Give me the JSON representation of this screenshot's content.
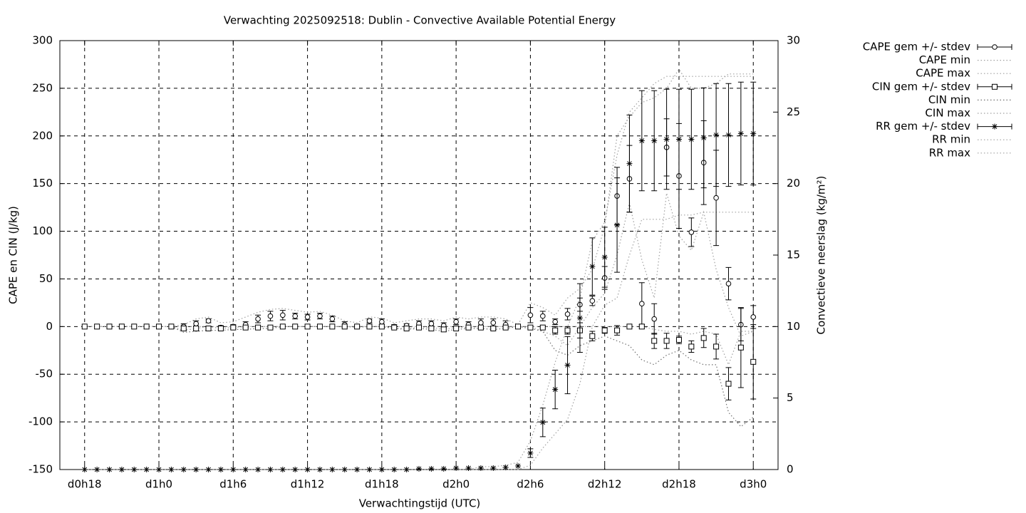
{
  "chart_data": {
    "type": "errorbar",
    "title": "Verwachting 2025092518: Dublin - Convective Available Potential Energy",
    "xlabel": "Verwachtingstijd (UTC)",
    "ylabel": "CAPE en CIN (J/kg)",
    "y2label": "Convectieve neerslag (kg/m²)",
    "x": [
      18,
      19,
      20,
      21,
      22,
      23,
      24,
      25,
      26,
      27,
      28,
      29,
      30,
      31,
      32,
      33,
      34,
      35,
      36,
      37,
      38,
      39,
      40,
      41,
      42,
      43,
      44,
      45,
      46,
      47,
      48,
      49,
      50,
      51,
      52,
      53,
      54,
      55,
      56,
      57,
      58,
      59,
      60,
      61,
      62,
      63,
      64,
      65,
      66,
      67,
      68,
      69,
      70,
      71,
      72
    ],
    "xlim": [
      16,
      74
    ],
    "xticks": [
      {
        "value": 18,
        "label": "d0h18"
      },
      {
        "value": 24,
        "label": "d1h0"
      },
      {
        "value": 30,
        "label": "d1h6"
      },
      {
        "value": 36,
        "label": "d1h12"
      },
      {
        "value": 42,
        "label": "d1h18"
      },
      {
        "value": 48,
        "label": "d2h0"
      },
      {
        "value": 54,
        "label": "d2h6"
      },
      {
        "value": 60,
        "label": "d2h12"
      },
      {
        "value": 66,
        "label": "d2h18"
      },
      {
        "value": 72,
        "label": "d3h0"
      }
    ],
    "ylim": [
      -150,
      300
    ],
    "yticks": [
      -150,
      -100,
      -50,
      0,
      50,
      100,
      150,
      200,
      250,
      300
    ],
    "y2lim": [
      0,
      30
    ],
    "y2ticks": [
      0,
      5,
      10,
      15,
      20,
      25,
      30
    ],
    "grid": true,
    "legend": "outside-right",
    "series": [
      {
        "name": "CAPE gem +/- stdev",
        "color": "#000000",
        "style": "errorbar",
        "marker": "circle",
        "values": [
          0,
          0,
          0,
          0,
          0,
          0,
          0,
          0,
          0,
          3,
          6,
          -1,
          0,
          2,
          8,
          11,
          12,
          11,
          10,
          11,
          8,
          2,
          0,
          6,
          5,
          0,
          1,
          3,
          3,
          1,
          5,
          2,
          4,
          4,
          2,
          0,
          12,
          11,
          5,
          13,
          23,
          27,
          51,
          137,
          155,
          24,
          8,
          188,
          158,
          99,
          172,
          135,
          45,
          2,
          10
        ],
        "errors": [
          0,
          0,
          0,
          0,
          0,
          0,
          0,
          0,
          3,
          3,
          2,
          2,
          2,
          3,
          4,
          5,
          5,
          3,
          3,
          3,
          3,
          3,
          1,
          2,
          3,
          2,
          2,
          3,
          3,
          3,
          3,
          3,
          4,
          4,
          4,
          1,
          8,
          5,
          3,
          6,
          7,
          5,
          12,
          30,
          35,
          22,
          16,
          30,
          55,
          15,
          44,
          50,
          17,
          17,
          12
        ]
      },
      {
        "name": "CAPE min",
        "color": "#a0a0a0",
        "style": "dotted",
        "values": [
          0,
          0,
          0,
          0,
          0,
          0,
          0,
          0,
          -4,
          -2,
          0,
          -2,
          -1,
          0,
          0,
          0,
          0,
          0,
          0,
          0,
          0,
          0,
          -1,
          0,
          0,
          -2,
          -2,
          -1,
          -1,
          -3,
          -1,
          -1,
          0,
          0,
          0,
          0,
          0,
          -5,
          -10,
          -20,
          0,
          20,
          35,
          75,
          130,
          70,
          30,
          140,
          95,
          80,
          120,
          60,
          20,
          -10,
          -5
        ]
      },
      {
        "name": "CAPE max",
        "color": "#a0a0a0",
        "style": "dotted",
        "values": [
          0,
          0,
          0,
          0,
          0,
          0,
          0,
          0,
          2,
          8,
          10,
          4,
          5,
          10,
          15,
          18,
          19,
          17,
          15,
          16,
          12,
          6,
          4,
          10,
          9,
          4,
          6,
          8,
          8,
          6,
          10,
          8,
          10,
          10,
          8,
          2,
          25,
          20,
          12,
          30,
          40,
          60,
          105,
          200,
          220,
          235,
          240,
          250,
          270,
          250,
          250,
          255,
          265,
          265,
          265
        ]
      },
      {
        "name": "CIN gem +/- stdev",
        "color": "#000000",
        "style": "errorbar",
        "marker": "square",
        "values": [
          0,
          0,
          0,
          0,
          0,
          0,
          0,
          0,
          -2,
          -2,
          -2,
          -2,
          -1,
          -1,
          -1,
          -1,
          0,
          0,
          0,
          0,
          0,
          0,
          0,
          0,
          0,
          -1,
          -2,
          -1,
          -2,
          -3,
          -2,
          -1,
          -1,
          -2,
          -1,
          0,
          -1,
          -1,
          -4,
          -4,
          -4,
          -10,
          -4,
          -4,
          0,
          0,
          -15,
          -15,
          -14,
          -21,
          -12,
          -21,
          -60,
          -22,
          -37
        ],
        "errors": [
          0,
          0,
          0,
          0,
          0,
          0,
          0,
          0,
          2,
          2,
          1,
          1,
          1,
          1,
          1,
          1,
          0,
          0,
          0,
          0,
          0,
          0,
          0,
          0,
          0,
          1,
          1,
          1,
          1,
          2,
          1,
          1,
          1,
          1,
          1,
          0,
          1,
          1,
          4,
          4,
          8,
          5,
          3,
          5,
          1,
          2,
          8,
          8,
          4,
          6,
          10,
          13,
          17,
          42,
          39
        ]
      },
      {
        "name": "CIN min",
        "color": "#707070",
        "style": "dotted",
        "values": [
          0,
          0,
          0,
          0,
          0,
          0,
          0,
          0,
          -6,
          -5,
          -4,
          -4,
          -3,
          -3,
          -2,
          -2,
          0,
          0,
          0,
          0,
          0,
          0,
          0,
          0,
          0,
          -2,
          -3,
          -2,
          -3,
          -5,
          -3,
          -2,
          -2,
          -3,
          -2,
          0,
          -2,
          -5,
          -25,
          -30,
          -20,
          -15,
          -10,
          -15,
          -20,
          -35,
          -40,
          -30,
          -25,
          -35,
          -40,
          -40,
          -90,
          -105,
          -95
        ]
      },
      {
        "name": "CIN max",
        "color": "#a0a0a0",
        "style": "dotted",
        "values": [
          0,
          0,
          0,
          0,
          0,
          0,
          0,
          0,
          0,
          0,
          0,
          0,
          0,
          0,
          0,
          0,
          0,
          0,
          0,
          0,
          0,
          0,
          0,
          0,
          0,
          0,
          0,
          0,
          0,
          0,
          0,
          0,
          0,
          0,
          0,
          0,
          0,
          0,
          0,
          0,
          0,
          0,
          0,
          0,
          0,
          0,
          -3,
          -5,
          -5,
          -8,
          -5,
          -8,
          -40,
          -5,
          -5
        ]
      },
      {
        "name": "RR gem +/- stdev",
        "color": "#000000",
        "style": "errorbar",
        "marker": "star",
        "axis": "y2",
        "values": [
          0,
          0,
          0,
          0,
          0,
          0,
          0,
          0,
          0,
          0,
          0,
          0,
          0,
          0,
          0,
          0,
          0,
          0,
          0,
          0,
          0,
          0,
          0,
          0,
          0,
          0,
          0,
          0.05,
          0.05,
          0.05,
          0.1,
          0.1,
          0.1,
          0.1,
          0.15,
          0.25,
          1.15,
          3.3,
          5.6,
          7.3,
          10.6,
          14.2,
          14.85,
          17.1,
          21.4,
          23.0,
          23.0,
          23.1,
          23.1,
          23.1,
          23.2,
          23.4,
          23.4,
          23.5,
          23.5
        ],
        "errors": [
          0,
          0,
          0,
          0,
          0,
          0,
          0,
          0,
          0,
          0,
          0,
          0,
          0,
          0,
          0,
          0,
          0,
          0,
          0,
          0,
          0,
          0,
          0,
          0,
          0,
          0,
          0,
          0,
          0,
          0,
          0,
          0,
          0,
          0,
          0,
          0,
          0.3,
          1,
          1.35,
          2,
          2.4,
          2,
          2.1,
          3.3,
          3.4,
          3.5,
          3.5,
          3.5,
          3.5,
          3.5,
          3.5,
          3.6,
          3.6,
          3.6,
          3.6
        ]
      },
      {
        "name": "RR min",
        "color": "#a0a0a0",
        "style": "dotted",
        "axis": "y2",
        "values": [
          0,
          0,
          0,
          0,
          0,
          0,
          0,
          0,
          0,
          0,
          0,
          0,
          0,
          0,
          0,
          0,
          0,
          0,
          0,
          0,
          0,
          0,
          0,
          0,
          0,
          0,
          0,
          0,
          0,
          0,
          0,
          0,
          0,
          0,
          0,
          0,
          0.3,
          1.5,
          2.5,
          3.5,
          6,
          10,
          11.5,
          12,
          15,
          17.5,
          17.5,
          17.5,
          17.8,
          17.8,
          18,
          18,
          18,
          18,
          18
        ]
      },
      {
        "name": "RR max",
        "color": "#a0a0a0",
        "style": "dotted",
        "axis": "y2",
        "values": [
          0,
          0,
          0,
          0,
          0,
          0,
          0,
          0,
          0,
          0,
          0,
          0,
          0,
          0,
          0,
          0,
          0,
          0,
          0,
          0,
          0,
          0,
          0,
          0,
          0,
          0,
          0,
          0,
          0,
          0,
          0,
          0,
          0.2,
          0.2,
          0.3,
          0.5,
          2,
          4.5,
          7.5,
          10,
          12,
          16,
          17.3,
          22,
          25,
          26,
          27,
          27.5,
          27.5,
          27.5,
          27.5,
          27.5,
          27.5,
          27.5,
          27.5
        ]
      }
    ]
  }
}
